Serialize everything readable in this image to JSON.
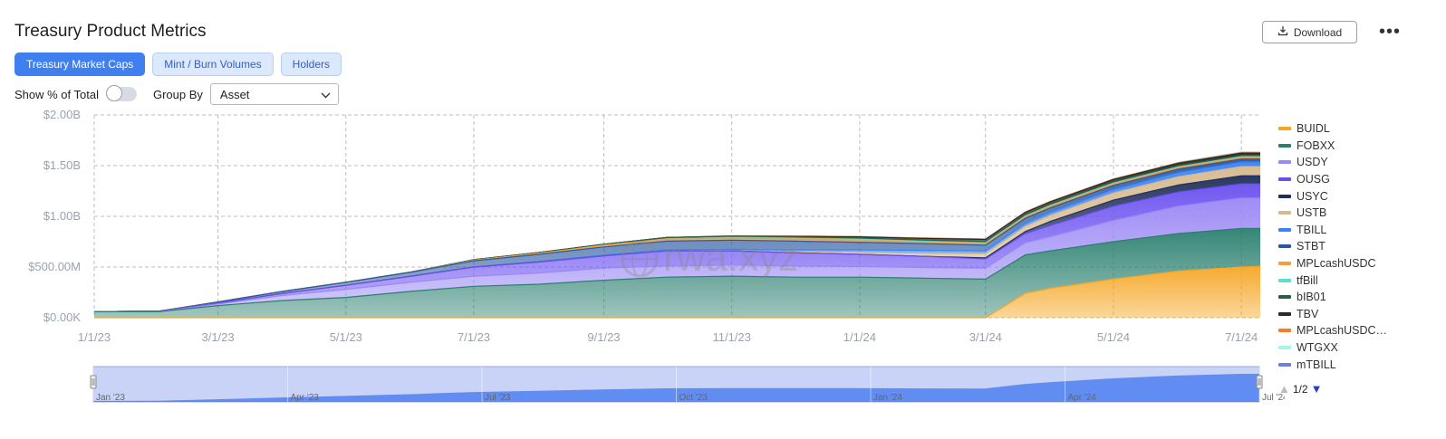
{
  "header": {
    "title": "Treasury Product Metrics",
    "download_label": "Download",
    "more_label": "•••"
  },
  "tabs": [
    {
      "label": "Treasury Market Caps",
      "active": true
    },
    {
      "label": "Mint / Burn Volumes",
      "active": false
    },
    {
      "label": "Holders",
      "active": false
    }
  ],
  "controls": {
    "show_pct_label": "Show % of Total",
    "show_pct_on": false,
    "group_by_label": "Group By",
    "group_by_value": "Asset"
  },
  "watermark": "rwa.xyz",
  "legend_page": "1/2",
  "chart_data": {
    "type": "area",
    "stacked": true,
    "grid": true,
    "ylim": [
      0,
      2000000000
    ],
    "y_ticks": [
      {
        "value": 0,
        "label": "$0.00K"
      },
      {
        "value": 500000000,
        "label": "$500.00M"
      },
      {
        "value": 1000000000,
        "label": "$1.00B"
      },
      {
        "value": 1500000000,
        "label": "$1.50B"
      },
      {
        "value": 2000000000,
        "label": "$2.00B"
      }
    ],
    "x_ticks": [
      "1/1/23",
      "3/1/23",
      "5/1/23",
      "7/1/23",
      "9/1/23",
      "11/1/23",
      "1/1/24",
      "3/1/24",
      "5/1/24",
      "7/1/24"
    ],
    "x": [
      "1/1/23",
      "2/1/23",
      "3/1/23",
      "4/1/23",
      "5/1/23",
      "6/1/23",
      "7/1/23",
      "8/1/23",
      "9/1/23",
      "10/1/23",
      "11/1/23",
      "12/1/23",
      "1/1/24",
      "2/1/24",
      "3/1/24",
      "3/20/24",
      "4/1/24",
      "5/1/24",
      "6/1/24",
      "7/1/24",
      "7/10/24"
    ],
    "legend_position": "right",
    "series": [
      {
        "name": "BUIDL",
        "color": "#f5a623",
        "values": [
          0,
          0,
          0,
          0,
          0,
          0,
          0,
          0,
          0,
          0,
          0,
          0,
          0,
          0,
          0,
          240000000,
          290000000,
          380000000,
          460000000,
          500000000,
          505000000
        ]
      },
      {
        "name": "FOBXX",
        "color": "#2a7f6f",
        "values": [
          60000000,
          60000000,
          120000000,
          170000000,
          200000000,
          260000000,
          310000000,
          330000000,
          370000000,
          400000000,
          410000000,
          400000000,
          400000000,
          390000000,
          380000000,
          380000000,
          370000000,
          370000000,
          370000000,
          380000000,
          375000000
        ]
      },
      {
        "name": "USDY",
        "color": "#9a87f5",
        "values": [
          0,
          0,
          15000000,
          50000000,
          80000000,
          90000000,
          100000000,
          110000000,
          120000000,
          110000000,
          110000000,
          110000000,
          105000000,
          105000000,
          110000000,
          120000000,
          140000000,
          210000000,
          270000000,
          300000000,
          300000000
        ]
      },
      {
        "name": "OUSG",
        "color": "#6a4ff0",
        "values": [
          0,
          5000000,
          10000000,
          20000000,
          40000000,
          60000000,
          90000000,
          110000000,
          120000000,
          150000000,
          140000000,
          130000000,
          120000000,
          110000000,
          90000000,
          90000000,
          110000000,
          140000000,
          140000000,
          140000000,
          140000000
        ]
      },
      {
        "name": "USYC",
        "color": "#1f2f5a",
        "values": [
          0,
          0,
          0,
          0,
          0,
          0,
          0,
          0,
          0,
          0,
          0,
          0,
          0,
          0,
          10000000,
          20000000,
          40000000,
          60000000,
          70000000,
          80000000,
          80000000
        ]
      },
      {
        "name": "USTB",
        "color": "#d6b98e",
        "values": [
          0,
          0,
          0,
          0,
          0,
          0,
          0,
          0,
          0,
          0,
          0,
          10000000,
          20000000,
          30000000,
          40000000,
          50000000,
          60000000,
          70000000,
          80000000,
          90000000,
          90000000
        ]
      },
      {
        "name": "TBILL",
        "color": "#3b82f6",
        "values": [
          0,
          0,
          0,
          0,
          0,
          0,
          2000000,
          5000000,
          8000000,
          10000000,
          15000000,
          20000000,
          25000000,
          30000000,
          30000000,
          30000000,
          30000000,
          35000000,
          40000000,
          45000000,
          45000000
        ]
      },
      {
        "name": "STBT",
        "color": "#2b5aa0",
        "values": [
          0,
          0,
          10000000,
          20000000,
          30000000,
          40000000,
          60000000,
          70000000,
          80000000,
          85000000,
          90000000,
          85000000,
          75000000,
          65000000,
          55000000,
          50000000,
          45000000,
          40000000,
          35000000,
          30000000,
          30000000
        ]
      },
      {
        "name": "MPLcashUSDC",
        "color": "#f59b42",
        "values": [
          0,
          0,
          0,
          0,
          0,
          0,
          5000000,
          10000000,
          15000000,
          20000000,
          20000000,
          20000000,
          20000000,
          15000000,
          15000000,
          15000000,
          15000000,
          15000000,
          15000000,
          15000000,
          15000000
        ]
      },
      {
        "name": "tfBill",
        "color": "#59e0d0",
        "values": [
          0,
          0,
          0,
          0,
          0,
          0,
          0,
          0,
          2000000,
          4000000,
          6000000,
          8000000,
          8000000,
          8000000,
          8000000,
          8000000,
          8000000,
          8000000,
          8000000,
          8000000,
          8000000
        ]
      },
      {
        "name": "bIB01",
        "color": "#2e5e3e",
        "values": [
          0,
          0,
          0,
          0,
          0,
          0,
          5000000,
          8000000,
          10000000,
          12000000,
          14000000,
          14000000,
          14000000,
          14000000,
          14000000,
          14000000,
          14000000,
          14000000,
          14000000,
          14000000,
          14000000
        ]
      },
      {
        "name": "TBV",
        "color": "#2a2a2a",
        "values": [
          0,
          0,
          0,
          0,
          0,
          0,
          0,
          0,
          0,
          0,
          0,
          5000000,
          10000000,
          15000000,
          20000000,
          22000000,
          22000000,
          22000000,
          22000000,
          22000000,
          22000000
        ]
      },
      {
        "name": "MPLcashUSDC…",
        "color": "#f57c2b",
        "values": [
          0,
          0,
          0,
          0,
          0,
          0,
          0,
          0,
          0,
          0,
          2000000,
          3000000,
          4000000,
          4000000,
          4000000,
          4000000,
          4000000,
          4000000,
          4000000,
          4000000,
          4000000
        ]
      },
      {
        "name": "WTGXX",
        "color": "#a5f2ef",
        "values": [
          0,
          0,
          0,
          0,
          0,
          0,
          0,
          0,
          0,
          0,
          0,
          0,
          0,
          0,
          0,
          0,
          0,
          0,
          2000000,
          3000000,
          3000000
        ]
      },
      {
        "name": "mTBILL",
        "color": "#6f7fe0",
        "values": [
          0,
          0,
          0,
          0,
          0,
          0,
          0,
          0,
          0,
          0,
          0,
          0,
          0,
          0,
          0,
          0,
          0,
          0,
          1000000,
          2000000,
          2000000
        ]
      }
    ],
    "navigator": {
      "ticks": [
        "Jan '23",
        "Apr '23",
        "Jul '23",
        "Oct '23",
        "Jan '24",
        "Apr '24",
        "Jul '24"
      ]
    }
  }
}
